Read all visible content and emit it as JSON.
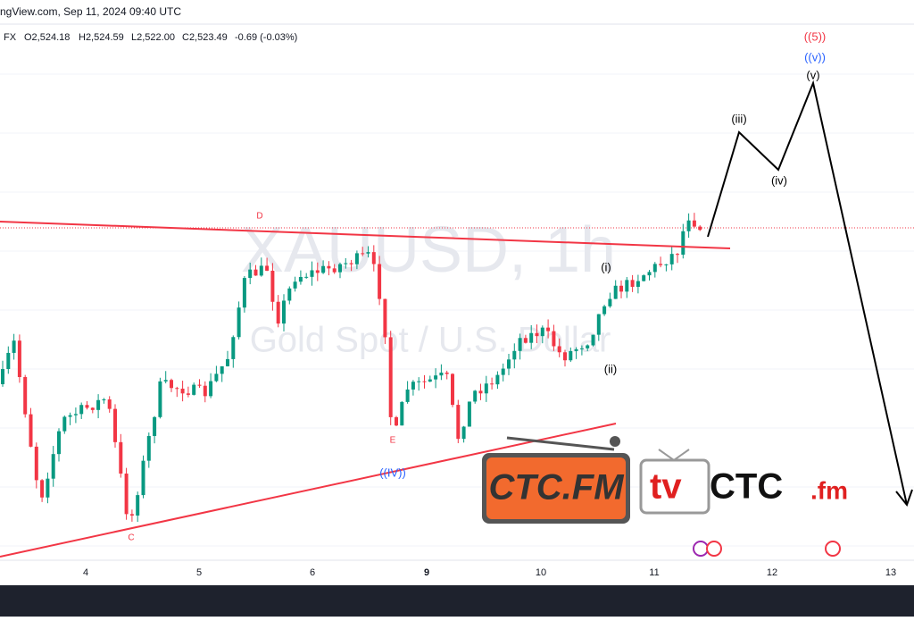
{
  "header": {
    "source": "ngView.com, Sep 11, 2024 09:40 UTC",
    "symbol": "FX",
    "open": "O2,524.18",
    "high": "H2,524.59",
    "low": "L2,522.00",
    "close": "C2,523.49",
    "change": "-0.69 (-0.03%)"
  },
  "watermark": {
    "symbol": "XAUUSD, 1h",
    "description": "Gold Spot / U.S. Dollar"
  },
  "wave_labels": {
    "w5": "((5))",
    "wv_big": "((v))",
    "wv": "(v)",
    "wiii": "(iii)",
    "wiv": "(iv)",
    "wi": "(i)",
    "wii": "(ii)",
    "d": "D",
    "c": "C",
    "e": "E",
    "wIV": "((IV))"
  },
  "x_axis": {
    "labels": [
      "4",
      "5",
      "6",
      "9",
      "10",
      "11",
      "12",
      "13"
    ]
  },
  "logos": {
    "ctc": "CTC.FM",
    "tv": "tv",
    "tv_ctc": "CTC",
    "tv_fm": ".fm"
  }
}
